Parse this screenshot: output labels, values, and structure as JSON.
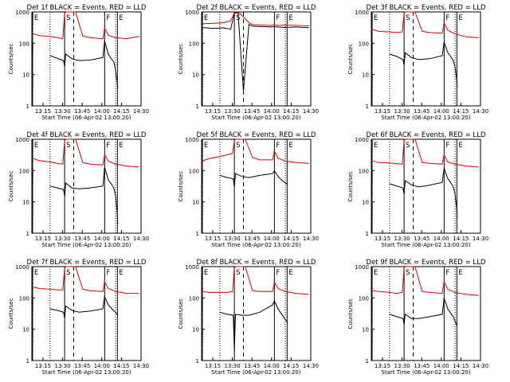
{
  "chart_data": {
    "type": "line",
    "x_unit": "minutes after 13:00:20 (06-Apr-02)",
    "xlim": [
      7,
      37
    ],
    "xtick_labels": [
      "13:15",
      "13:30",
      "13:45",
      "14:00",
      "14:15",
      "14:30"
    ],
    "xlabel": "Start Time (06-Apr-02 13:00:20)",
    "ylabel": "Counts/sec",
    "yscale": "log",
    "ylim": [
      1,
      1000
    ],
    "ytick_labels": [
      "1",
      "10",
      "100",
      "1000"
    ],
    "event_marks": [
      {
        "label": "E",
        "t": 7.2,
        "style": "solid"
      },
      {
        "label": "",
        "t": 12.0,
        "style": "dotted"
      },
      {
        "label": "S",
        "t": 16.0,
        "style": "solid"
      },
      {
        "label": "",
        "t": 18.5,
        "style": "dashed"
      },
      {
        "label": "F",
        "t": 27.0,
        "style": "solid"
      },
      {
        "label": "",
        "t": 30.0,
        "style": "dotted"
      },
      {
        "label": "E",
        "t": 30.5,
        "style": "solid"
      }
    ],
    "panels": [
      {
        "title": "Det 1f BLACK = Events, RED = LLD",
        "series": [
          {
            "name": "Events",
            "color": "#000000",
            "x": [
              12,
              14,
              15.7,
              16,
              16.3,
              18,
              20,
              23,
              26.5,
              27,
              28,
              29,
              29.5,
              30,
              30.4,
              30.6
            ],
            "y": [
              40,
              33,
              28,
              18,
              45,
              32,
              28,
              29,
              35,
              120,
              45,
              30,
              25,
              14,
              6,
              3.5
            ]
          },
          {
            "name": "LLD",
            "color": "#dd0000",
            "x": [
              7,
              9,
              12,
              14,
              15.5,
              16,
              16.3,
              19,
              21,
              23,
              26.5,
              27,
              28,
              30,
              33,
              36.5
            ],
            "y": [
              210,
              175,
              165,
              150,
              140,
              900,
              1000,
              1000,
              170,
              150,
              140,
              300,
              180,
              150,
              140,
              165
            ]
          }
        ]
      },
      {
        "title": "Det 2f BLACK = Events, RED = LLD",
        "series": [
          {
            "name": "Events",
            "color": "#000000",
            "x": [
              7,
              10,
              13,
              15,
              16,
              17,
              18.5,
              20,
              21,
              23,
              26,
              27,
              28,
              30,
              33,
              36.5
            ],
            "y": [
              320,
              300,
              310,
              280,
              900,
              950,
              3,
              400,
              350,
              340,
              330,
              340,
              330,
              320,
              330,
              310
            ]
          },
          {
            "name": "LLD",
            "color": "#dd0000",
            "x": [
              7,
              10,
              13,
              15,
              16,
              17,
              18.5,
              20,
              21,
              23,
              26,
              27,
              28,
              30,
              33,
              36.5
            ],
            "y": [
              420,
              430,
              450,
              520,
              950,
              980,
              700,
              450,
              400,
              380,
              370,
              390,
              370,
              380,
              370,
              360
            ]
          }
        ]
      },
      {
        "title": "Det 3f BLACK = Events, RED = LLD",
        "series": [
          {
            "name": "Events",
            "color": "#000000",
            "x": [
              12,
              14,
              15.7,
              16,
              16.3,
              18,
              20,
              23,
              26.5,
              27,
              28,
              29,
              29.5,
              30,
              30.4,
              30.6
            ],
            "y": [
              45,
              38,
              30,
              20,
              50,
              35,
              30,
              32,
              40,
              110,
              50,
              35,
              28,
              18,
              8,
              4
            ]
          },
          {
            "name": "LLD",
            "color": "#dd0000",
            "x": [
              7,
              9,
              12,
              14,
              15.5,
              16,
              16.3,
              19,
              21,
              23,
              26.5,
              27,
              28,
              30,
              33,
              36.5
            ],
            "y": [
              280,
              240,
              230,
              220,
              230,
              900,
              1000,
              1000,
              240,
              220,
              210,
              450,
              260,
              200,
              160,
              150
            ]
          }
        ]
      },
      {
        "title": "Det 4f BLACK = Events, RED = LLD",
        "series": [
          {
            "name": "Events",
            "color": "#000000",
            "x": [
              12,
              14,
              15.7,
              16,
              16.3,
              18,
              20,
              23,
              26.5,
              27,
              28,
              29,
              29.5,
              30,
              30.4,
              30.6
            ],
            "y": [
              32,
              28,
              25,
              15,
              40,
              28,
              26,
              28,
              32,
              130,
              50,
              35,
              28,
              16,
              5,
              2
            ]
          },
          {
            "name": "LLD",
            "color": "#dd0000",
            "x": [
              7,
              9,
              12,
              14,
              15.5,
              16,
              16.3,
              19,
              21,
              23,
              26.5,
              27,
              28,
              30,
              33,
              36.5
            ],
            "y": [
              250,
              210,
              190,
              170,
              160,
              900,
              1000,
              1000,
              180,
              160,
              150,
              320,
              200,
              160,
              140,
              130
            ]
          }
        ]
      },
      {
        "title": "Det 5f BLACK = Events, RED = LLD",
        "series": [
          {
            "name": "Events",
            "color": "#000000",
            "x": [
              12,
              14,
              15.7,
              16,
              16.3,
              18,
              20,
              23,
              26.5,
              27,
              28,
              29,
              29.5,
              30,
              30.4,
              30.6
            ],
            "y": [
              70,
              60,
              55,
              30,
              80,
              65,
              60,
              70,
              80,
              100,
              65,
              50,
              45,
              40,
              38,
              35
            ]
          },
          {
            "name": "LLD",
            "color": "#dd0000",
            "x": [
              7,
              9,
              12,
              14,
              15.5,
              16,
              16.3,
              19,
              21,
              23,
              26.5,
              27,
              28,
              30,
              33,
              36.5
            ],
            "y": [
              200,
              240,
              280,
              320,
              350,
              900,
              1000,
              1000,
              260,
              220,
              220,
              420,
              250,
              200,
              180,
              170
            ]
          }
        ]
      },
      {
        "title": "Det 6f BLACK = Events, RED = LLD",
        "series": [
          {
            "name": "Events",
            "color": "#000000",
            "x": [
              12,
              14,
              15.7,
              16,
              16.3,
              18,
              20,
              23,
              26.5,
              27,
              28,
              29,
              29.5,
              30,
              30.4,
              30.6
            ],
            "y": [
              38,
              32,
              28,
              18,
              48,
              35,
              30,
              34,
              42,
              120,
              55,
              38,
              30,
              18,
              7,
              3
            ]
          },
          {
            "name": "LLD",
            "color": "#dd0000",
            "x": [
              7,
              9,
              12,
              14,
              15.5,
              16,
              16.3,
              19,
              21,
              23,
              26.5,
              27,
              28,
              30,
              33,
              36.5
            ],
            "y": [
              210,
              180,
              175,
              165,
              160,
              900,
              1000,
              1000,
              180,
              170,
              160,
              320,
              190,
              160,
              140,
              130
            ]
          }
        ]
      },
      {
        "title": "Det 7f BLACK = Events, RED = LLD",
        "series": [
          {
            "name": "Events",
            "color": "#000000",
            "x": [
              12,
              14,
              15.7,
              16,
              16.3,
              18,
              20,
              23,
              26.5,
              27,
              28,
              29,
              29.5,
              30,
              30.4,
              30.6
            ],
            "y": [
              45,
              40,
              35,
              22,
              55,
              40,
              35,
              38,
              45,
              110,
              60,
              45,
              38,
              35,
              30,
              28
            ]
          },
          {
            "name": "LLD",
            "color": "#dd0000",
            "x": [
              7,
              9,
              12,
              14,
              15.5,
              16,
              16.3,
              19,
              21,
              23,
              26.5,
              27,
              28,
              30,
              33,
              36.5
            ],
            "y": [
              230,
              200,
              190,
              180,
              180,
              900,
              1000,
              1000,
              190,
              170,
              160,
              330,
              200,
              160,
              140,
              140
            ]
          }
        ]
      },
      {
        "title": "Det 8f BLACK = Events, RED = LLD",
        "series": [
          {
            "name": "Events",
            "color": "#000000",
            "x": [
              12,
              14,
              15.7,
              16,
              16.3,
              18,
              20,
              23,
              26.5,
              27,
              28,
              29,
              29.5,
              30,
              30.4,
              30.6
            ],
            "y": [
              35,
              30,
              28,
              2,
              30,
              28,
              28,
              35,
              60,
              80,
              45,
              30,
              25,
              20,
              18,
              16
            ]
          },
          {
            "name": "LLD",
            "color": "#dd0000",
            "x": [
              7,
              9,
              12,
              14,
              15.5,
              16,
              16.3,
              19,
              21,
              23,
              26.5,
              27,
              28,
              30,
              33,
              36.5
            ],
            "y": [
              160,
              150,
              150,
              150,
              160,
              900,
              1000,
              1000,
              170,
              160,
              160,
              320,
              200,
              160,
              140,
              130
            ]
          }
        ]
      },
      {
        "title": "Det 9f BLACK = Events, RED = LLD",
        "series": [
          {
            "name": "Events",
            "color": "#000000",
            "x": [
              12,
              14,
              15.7,
              16,
              16.3,
              18,
              20,
              23,
              26.5,
              27,
              28,
              29,
              29.5,
              30,
              30.4,
              30.6
            ],
            "y": [
              30,
              25,
              22,
              14,
              30,
              22,
              22,
              25,
              30,
              100,
              45,
              30,
              25,
              18,
              14,
              12
            ]
          },
          {
            "name": "LLD",
            "color": "#dd0000",
            "x": [
              7,
              9,
              12,
              14,
              15.5,
              16,
              16.3,
              19,
              21,
              23,
              26.5,
              27,
              28,
              30,
              33,
              36.5
            ],
            "y": [
              170,
              160,
              150,
              140,
              150,
              900,
              1000,
              1000,
              160,
              150,
              140,
              330,
              190,
              150,
              130,
              120
            ]
          }
        ]
      }
    ]
  }
}
